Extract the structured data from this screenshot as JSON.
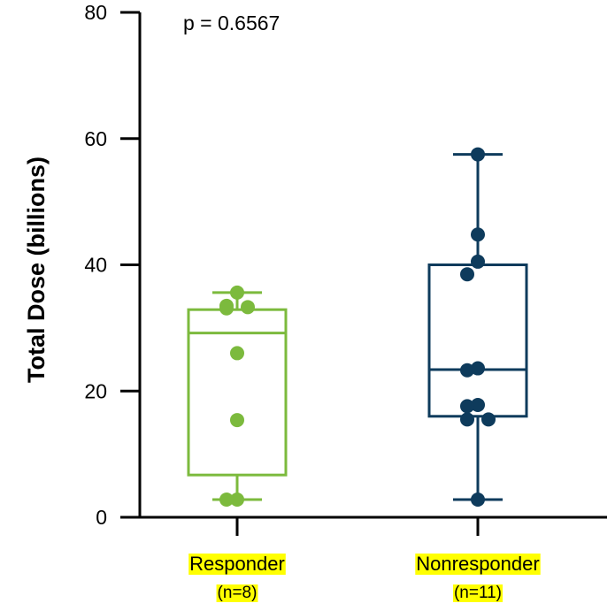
{
  "chart_data": {
    "type": "box",
    "title": "",
    "xlabel": "",
    "ylabel": "Total Dose (billions)",
    "ylim": [
      0,
      80
    ],
    "yticks": [
      "0",
      "20",
      "40",
      "60",
      "80"
    ],
    "annotation": "p = 0.6567",
    "highlight_color": "#ffff00",
    "groups": [
      {
        "label": "Responder",
        "n_label": "(n=8)",
        "color": "#7cba3d",
        "box": {
          "min": 2.8,
          "q1": 6.7,
          "median": 29.2,
          "q3": 32.9,
          "max": 35.6
        },
        "points": [
          35.6,
          33.5,
          33.1,
          33.3,
          26.0,
          15.4,
          2.8,
          2.8
        ]
      },
      {
        "label": "Nonresponder",
        "n_label": "(n=11)",
        "color": "#0e3b5c",
        "box": {
          "min": 2.8,
          "q1": 16.0,
          "median": 23.4,
          "q3": 40.0,
          "max": 57.5
        },
        "points": [
          57.5,
          44.8,
          40.5,
          38.5,
          23.6,
          23.3,
          17.8,
          17.6,
          15.5,
          15.5,
          2.8
        ]
      }
    ]
  }
}
